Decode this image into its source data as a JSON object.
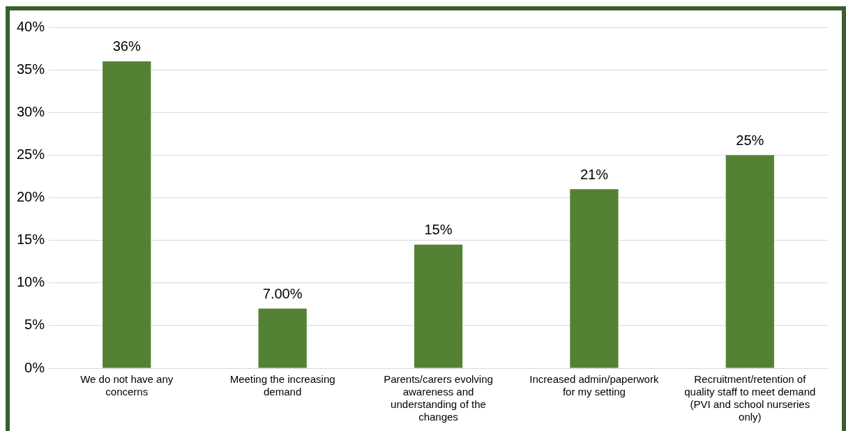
{
  "chart_data": {
    "type": "bar",
    "categories": [
      "We do not have any concerns",
      "Meeting the increasing demand",
      "Parents/carers evolving awareness and understanding of the changes",
      "Increased admin/paperwork for my setting",
      "Recruitment/retention of quality staff to meet demand (PVI and school nurseries only)"
    ],
    "values": [
      36,
      7,
      14.5,
      21,
      25
    ],
    "value_labels": [
      "36%",
      "7.00%",
      "15%",
      "21%",
      "25%"
    ],
    "color": "#548235",
    "ylim": [
      0,
      40
    ],
    "yticks": [
      {
        "value": 0,
        "label": "0%"
      },
      {
        "value": 5,
        "label": "5%"
      },
      {
        "value": 10,
        "label": "10%"
      },
      {
        "value": 15,
        "label": "15%"
      },
      {
        "value": 20,
        "label": "20%"
      },
      {
        "value": 25,
        "label": "25%"
      },
      {
        "value": 30,
        "label": "30%"
      },
      {
        "value": 35,
        "label": "35%"
      },
      {
        "value": 40,
        "label": "40%"
      }
    ],
    "grid": "y"
  }
}
